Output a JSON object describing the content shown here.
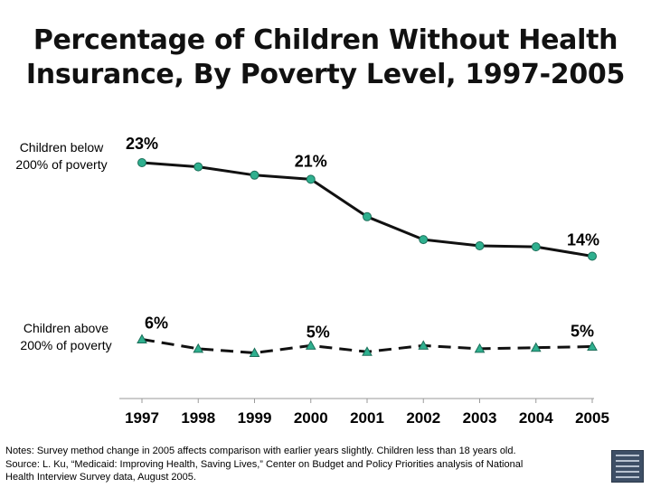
{
  "title_line1": "Percentage of Children Without Health",
  "title_line2": "Insurance, By Poverty Level, 1997-2005",
  "series_labels": {
    "below_line1": "Children below",
    "below_line2": "200% of poverty",
    "above_line1": "Children above",
    "above_line2": "200% of poverty"
  },
  "notes": {
    "line1": "Notes: Survey method change in 2005 affects comparison with earlier years slightly.  Children less than 18 years old.",
    "line2": "Source: L. Ku, “Medicaid: Improving Health, Saving Lives,” Center on Budget and Policy Priorities analysis of National",
    "line3": "Health Interview Survey data, August 2005."
  },
  "colors": {
    "line": "#111111",
    "below_marker": "#2fb08f",
    "above_marker": "#2fb08f",
    "marker_stroke": "#1b6e59",
    "axis": "#9a9a9a"
  },
  "chart_data": {
    "type": "line",
    "title": "Percentage of Children Without Health Insurance, By Poverty Level, 1997-2005",
    "categories": [
      "1997",
      "1998",
      "1999",
      "2000",
      "2001",
      "2002",
      "2003",
      "2004",
      "2005"
    ],
    "series": [
      {
        "name": "Children below 200% of poverty",
        "marker": "circle",
        "style": "solid",
        "values": [
          23,
          22.6,
          21.8,
          21.4,
          17.8,
          15.6,
          15,
          14.9,
          14
        ],
        "data_labels": [
          {
            "index": 0,
            "text": "23%"
          },
          {
            "index": 3,
            "text": "21%"
          },
          {
            "index": 8,
            "text": "14%"
          }
        ]
      },
      {
        "name": "Children above 200% of poverty",
        "marker": "triangle",
        "style": "dashed",
        "values": [
          6,
          5.1,
          4.7,
          5.4,
          4.8,
          5.4,
          5.1,
          5.2,
          5.3
        ],
        "data_labels": [
          {
            "index": 0,
            "text": "6%"
          },
          {
            "index": 3,
            "text": "5%"
          },
          {
            "index": 8,
            "text": "5%"
          }
        ]
      }
    ],
    "xlabel": "",
    "ylabel": "",
    "y_axis_visible": false,
    "grid": false,
    "legend": "none (series labeled at left)"
  }
}
